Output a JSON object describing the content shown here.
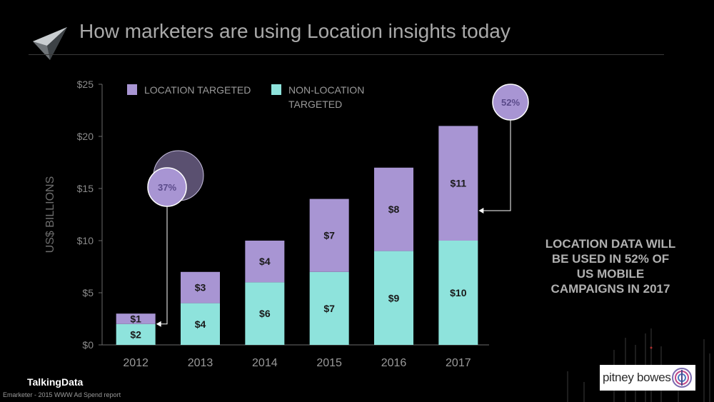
{
  "slide": {
    "title": "How marketers are using Location insights today",
    "side_note": "LOCATION DATA WILL\nBE USED IN 52% OF\nUS MOBILE\nCAMPAIGNS IN 2017",
    "brand": "TalkingData",
    "source": "Emarketer - 2015 WWW Ad Spend report",
    "partner_logo_text": "pitney bowes"
  },
  "chart_data": {
    "type": "bar",
    "stacked": true,
    "categories": [
      "2012",
      "2013",
      "2014",
      "2015",
      "2016",
      "2017"
    ],
    "series": [
      {
        "name": "NON-LOCATION TARGETED",
        "values": [
          2,
          4,
          6,
          7,
          9,
          10
        ],
        "labels": [
          "$2",
          "$4",
          "$6",
          "$7",
          "$9",
          "$10"
        ],
        "color": "#8ee3dc"
      },
      {
        "name": "LOCATION TARGETED",
        "values": [
          1,
          3,
          4,
          7,
          8,
          11
        ],
        "labels": [
          "$1",
          "$3",
          "$4",
          "$7",
          "$8",
          "$11"
        ],
        "color": "#a895d3"
      }
    ],
    "legend_order": [
      "LOCATION TARGETED",
      "NON-LOCATION TARGETED"
    ],
    "ylabel": "US$ BILLIONS",
    "ylim": [
      0,
      25
    ],
    "yticks": [
      0,
      5,
      10,
      15,
      20,
      25
    ],
    "ytick_labels": [
      "$0",
      "$5",
      "$10",
      "$15",
      "$20",
      "$25"
    ],
    "grid": false,
    "legend_position": "top-left",
    "annotations": [
      {
        "text": "37%",
        "target_category": "2012"
      },
      {
        "text": "52%",
        "target_category": "2017"
      }
    ]
  }
}
